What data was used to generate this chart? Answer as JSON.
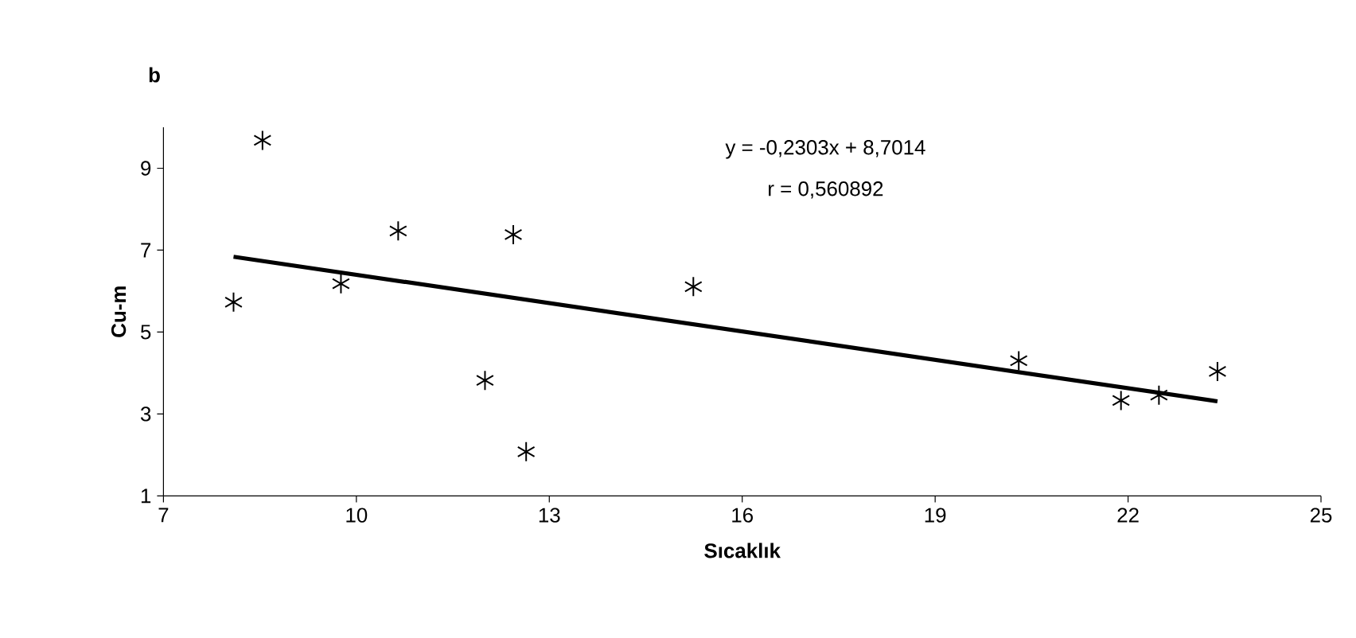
{
  "chart_data": {
    "type": "scatter",
    "title": "b",
    "xlabel": "Sıcaklık",
    "ylabel": "Cu-m",
    "annotations": [
      "y = -0,2303x + 8,7014",
      "r = 0,560892"
    ],
    "series": [
      {
        "color": "#000000",
        "marker": "cross",
        "x": [
          8.09,
          8.54,
          9.76,
          10.65,
          12.0,
          12.44,
          12.64,
          15.24,
          20.3,
          21.89,
          22.48,
          23.39
        ],
        "values": [
          5.73,
          9.68,
          6.18,
          7.47,
          3.82,
          7.38,
          2.08,
          6.11,
          4.3,
          3.33,
          3.46,
          4.04
        ]
      },
      {
        "type": "line",
        "color": "#000000",
        "marker": "none",
        "x": [
          8.09,
          23.39
        ],
        "values": [
          6.84,
          3.31
        ]
      }
    ],
    "xlim": [
      7,
      25
    ],
    "ylim": [
      1,
      10
    ],
    "xticks": [
      7,
      10,
      13,
      16,
      19,
      22,
      25
    ],
    "yticks": [
      1,
      3,
      5,
      7,
      9
    ],
    "grid": false
  }
}
